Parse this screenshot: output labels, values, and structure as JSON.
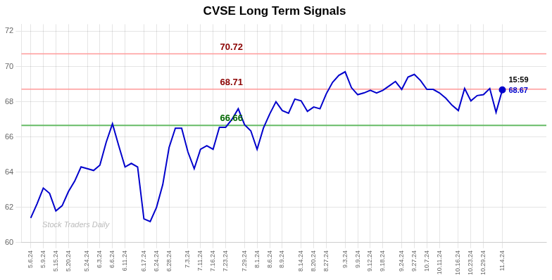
{
  "chart_data": {
    "type": "line",
    "title": "CVSE Long Term Signals",
    "categories": [
      "5.6.24",
      null,
      "5.9.24",
      null,
      "5.15.24",
      null,
      "5.20.24",
      null,
      null,
      "5.24.24",
      null,
      "6.3.24",
      null,
      "6.6.24",
      null,
      "6.11.24",
      null,
      null,
      "6.17.24",
      null,
      "6.24.24",
      null,
      "6.28.24",
      null,
      null,
      "7.3.24",
      null,
      "7.11.24",
      null,
      "7.16.24",
      null,
      "7.23.24",
      null,
      null,
      "7.29.24",
      null,
      "8.1.24",
      null,
      "8.6.24",
      null,
      "8.9.24",
      null,
      null,
      "8.14.24",
      null,
      "8.20.24",
      null,
      "8.27.24",
      null,
      null,
      "9.3.24",
      null,
      "9.9.24",
      null,
      "9.12.24",
      null,
      "9.18.24",
      null,
      null,
      "9.24.24",
      null,
      "9.27.24",
      null,
      "10.7.24",
      null,
      "10.11.24",
      null,
      null,
      "10.16.24",
      null,
      "10.23.24",
      null,
      "10.29.24",
      null,
      null,
      "11.4.24"
    ],
    "values": [
      61.4,
      62.2,
      63.1,
      62.8,
      61.8,
      62.1,
      62.9,
      63.5,
      64.3,
      64.2,
      64.1,
      64.4,
      65.7,
      66.75,
      65.5,
      64.3,
      64.5,
      64.3,
      61.35,
      61.2,
      62.0,
      63.3,
      65.4,
      66.5,
      66.5,
      65.15,
      64.2,
      65.3,
      65.5,
      65.3,
      66.55,
      66.55,
      67.0,
      67.6,
      66.7,
      66.35,
      65.3,
      66.5,
      67.3,
      68.0,
      67.5,
      67.35,
      68.15,
      68.05,
      67.45,
      67.7,
      67.6,
      68.45,
      69.1,
      69.5,
      69.7,
      68.8,
      68.4,
      68.5,
      68.65,
      68.5,
      68.65,
      68.9,
      69.15,
      68.7,
      69.4,
      69.55,
      69.2,
      68.7,
      68.7,
      68.5,
      68.2,
      67.8,
      67.5,
      68.75,
      68.05,
      68.35,
      68.4,
      68.75,
      67.4,
      68.67
    ],
    "color": "#0000CC",
    "ylim": [
      60,
      72.4
    ],
    "yticks": [
      60,
      62,
      64,
      66,
      68,
      70,
      72
    ],
    "grid": true,
    "reference_lines": [
      {
        "value": 70.72,
        "color": "#FF9999",
        "label_color": "#8B0000"
      },
      {
        "value": 68.71,
        "color": "#FF9999",
        "label_color": "#8B0000"
      },
      {
        "value": 66.66,
        "color": "#66BB66",
        "label_color": "#006600"
      }
    ],
    "annotations": [
      "15:59",
      "68.67"
    ],
    "watermark": "Stock Traders Daily"
  }
}
